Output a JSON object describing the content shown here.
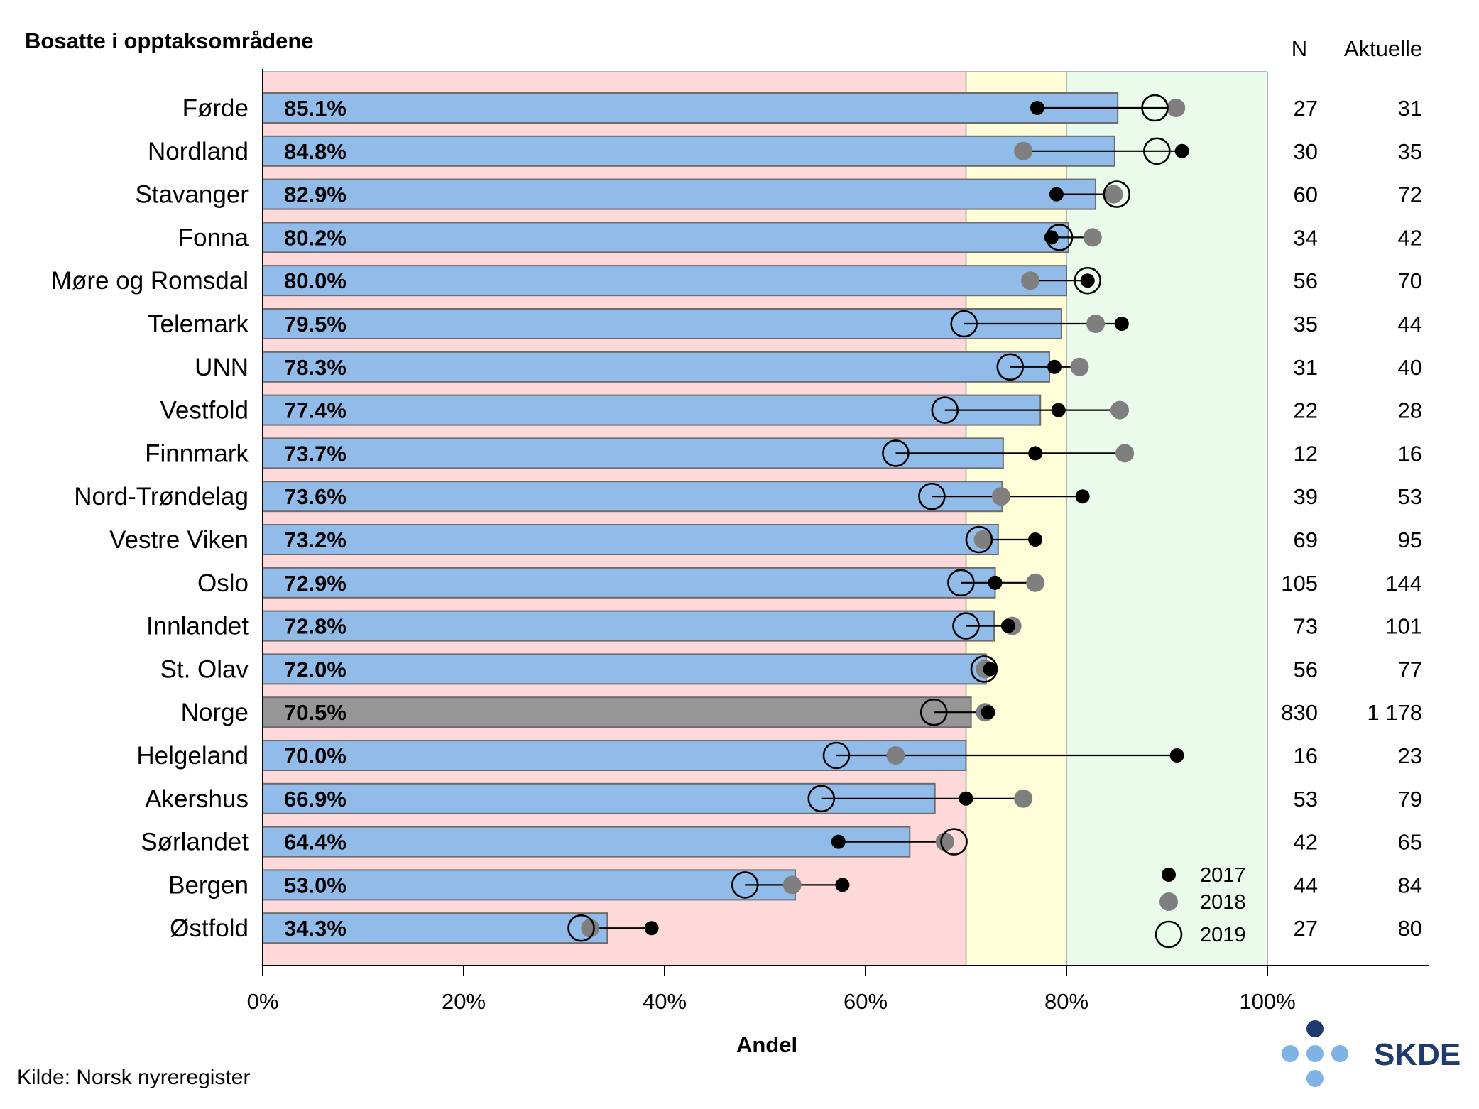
{
  "title": "Bosatte i opptaksområdene",
  "columns": {
    "n": "N",
    "aktuelle": "Aktuelle"
  },
  "source": "Kilde: Norsk nyreregister",
  "logo": {
    "text": "SKDE",
    "dark_dot": "#1f3b6e",
    "light_dot": "#7fb2e5"
  },
  "colors": {
    "zone_low": "#ffd9d9",
    "zone_mid": "#fffed9",
    "zone_high": "#ebfbeb",
    "bar": "#91bbe8",
    "bar_national": "#969696",
    "bar_stroke": "#6b6b6b",
    "dot_2017": "#000000",
    "dot_2018": "#7f7f7f"
  },
  "chart_data": {
    "type": "bar",
    "orientation": "horizontal",
    "xlabel": "Andel",
    "xlim": [
      0,
      100
    ],
    "xticks": [
      0,
      20,
      40,
      60,
      80,
      100
    ],
    "xtick_labels": [
      "0%",
      "20%",
      "40%",
      "60%",
      "80%",
      "100%"
    ],
    "target_zones": [
      {
        "from": 0,
        "to": 70,
        "level": "low"
      },
      {
        "from": 70,
        "to": 80,
        "level": "moderate"
      },
      {
        "from": 80,
        "to": 100,
        "level": "high"
      }
    ],
    "national_category": "Norge",
    "categories": [
      "Førde",
      "Nordland",
      "Stavanger",
      "Fonna",
      "Møre og Romsdal",
      "Telemark",
      "UNN",
      "Vestfold",
      "Finnmark",
      "Nord-Trøndelag",
      "Vestre Viken",
      "Oslo",
      "Innlandet",
      "St. Olav",
      "Norge",
      "Helgeland",
      "Akershus",
      "Sørlandet",
      "Bergen",
      "Østfold"
    ],
    "values": [
      85.1,
      84.8,
      82.9,
      80.2,
      80.0,
      79.5,
      78.3,
      77.4,
      73.7,
      73.6,
      73.2,
      72.9,
      72.8,
      72.0,
      70.5,
      70.0,
      66.9,
      64.4,
      53.0,
      34.3
    ],
    "value_labels": [
      "85.1%",
      "84.8%",
      "82.9%",
      "80.2%",
      "80.0%",
      "79.5%",
      "78.3%",
      "77.4%",
      "73.7%",
      "73.6%",
      "73.2%",
      "72.9%",
      "72.8%",
      "72.0%",
      "70.5%",
      "70.0%",
      "66.9%",
      "64.4%",
      "53.0%",
      "34.3%"
    ],
    "n": [
      "27",
      "30",
      "60",
      "34",
      "56",
      "35",
      "31",
      "22",
      "12",
      "39",
      "69",
      "105",
      "73",
      "56",
      "830",
      "16",
      "53",
      "42",
      "44",
      "27"
    ],
    "aktuelle": [
      "31",
      "35",
      "72",
      "42",
      "70",
      "44",
      "40",
      "28",
      "16",
      "53",
      "95",
      "144",
      "101",
      "77",
      "1 178",
      "23",
      "79",
      "65",
      "84",
      "80"
    ],
    "series": [
      {
        "name": "2017",
        "marker": "filled-black",
        "values": [
          77.1,
          91.5,
          79.0,
          78.5,
          82.1,
          85.5,
          78.8,
          79.2,
          76.9,
          81.6,
          76.9,
          72.9,
          74.2,
          72.4,
          72.2,
          91.0,
          70.0,
          57.3,
          57.7,
          38.7
        ]
      },
      {
        "name": "2018",
        "marker": "filled-grey",
        "values": [
          90.9,
          75.7,
          84.7,
          82.6,
          76.4,
          82.9,
          81.3,
          85.3,
          85.8,
          73.5,
          71.7,
          76.9,
          74.6,
          71.9,
          71.9,
          63.0,
          75.7,
          67.9,
          52.7,
          32.6
        ]
      },
      {
        "name": "2019",
        "marker": "open-circle",
        "values": [
          88.8,
          89.0,
          85.0,
          79.3,
          82.1,
          69.8,
          74.4,
          67.9,
          63.0,
          66.6,
          71.3,
          69.5,
          70.0,
          71.8,
          66.8,
          57.1,
          55.6,
          68.8,
          48.0,
          31.7
        ]
      }
    ]
  }
}
